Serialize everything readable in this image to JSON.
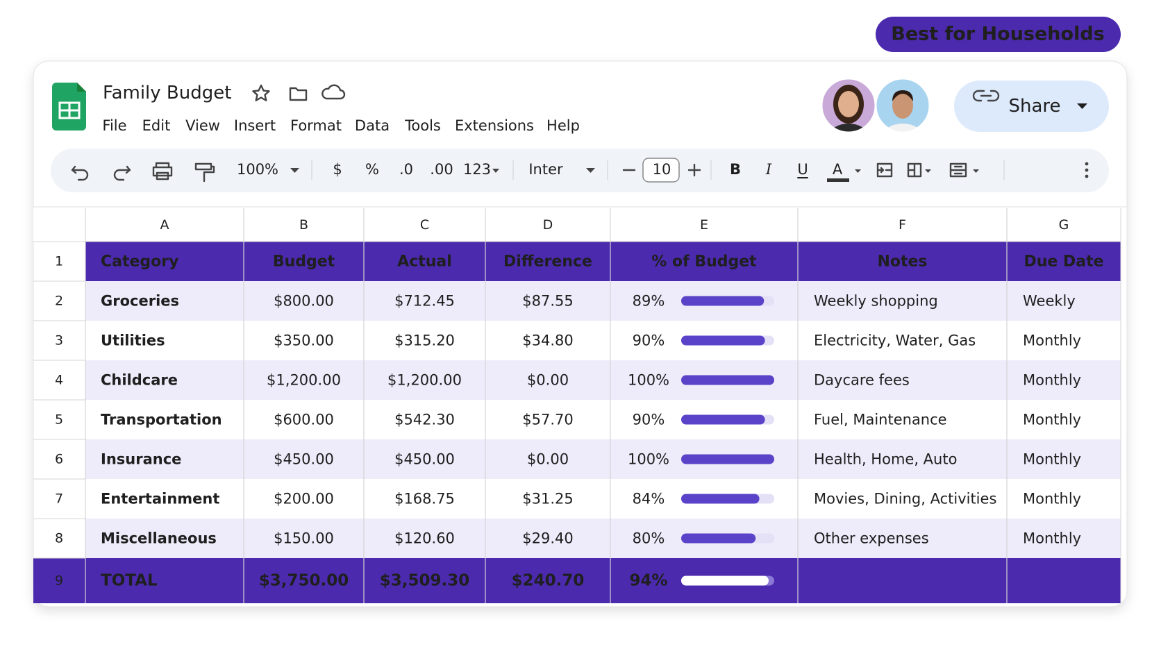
{
  "badge": "Best for Households",
  "header": {
    "title": "Family Budget",
    "menu": [
      "File",
      "Edit",
      "View",
      "Insert",
      "Format",
      "Data",
      "Tools",
      "Extensions",
      "Help"
    ],
    "share": "Share"
  },
  "toolbar": {
    "zoom": "100%",
    "currency": "$",
    "percent": "%",
    "decrease_decimals": ".0",
    "increase_decimals": ".00",
    "number_format": "123",
    "font": "Inter",
    "font_size": "10",
    "bold": "B",
    "italic": "I",
    "underline": "U",
    "text_color": "A"
  },
  "table": {
    "columns": [
      "A",
      "B",
      "C",
      "D",
      "E",
      "F",
      "G"
    ],
    "row_numbers": [
      1,
      2,
      3,
      4,
      5,
      6,
      7,
      8,
      9
    ],
    "header": [
      "Category",
      "Budget",
      "Actual",
      "Difference",
      "% of Budget",
      "Notes",
      "Due Date"
    ],
    "rows": [
      [
        "Groceries",
        "$800.00",
        "$712.45",
        "$87.55",
        {
          "value": 89,
          "label": "89%"
        },
        "Weekly shopping",
        "Weekly"
      ],
      [
        "Utilities",
        "$350.00",
        "$315.20",
        "$34.80",
        {
          "value": 90,
          "label": "90%"
        },
        "Electricity, Water, Gas",
        "Monthly"
      ],
      [
        "Childcare",
        "$1,200.00",
        "$1,200.00",
        "$0.00",
        {
          "value": 100,
          "label": "100%"
        },
        "Daycare fees",
        "Monthly"
      ],
      [
        "Transportation",
        "$600.00",
        "$542.30",
        "$57.70",
        {
          "value": 90,
          "label": "90%"
        },
        "Fuel, Maintenance",
        "Monthly"
      ],
      [
        "Insurance",
        "$450.00",
        "$450.00",
        "$0.00",
        {
          "value": 100,
          "label": "100%"
        },
        "Health, Home, Auto",
        "Monthly"
      ],
      [
        "Entertainment",
        "$200.00",
        "$168.75",
        "$31.25",
        {
          "value": 84,
          "label": "84%"
        },
        "Movies, Dining, Activities",
        "Monthly"
      ],
      [
        "Miscellaneous",
        "$150.00",
        "$120.60",
        "$29.40",
        {
          "value": 80,
          "label": "80%"
        },
        "Other expenses",
        "Monthly"
      ]
    ],
    "total": [
      "TOTAL",
      "$3,750.00",
      "$3,509.30",
      "$240.70",
      {
        "value": 94,
        "label": "94%"
      }
    ]
  }
}
